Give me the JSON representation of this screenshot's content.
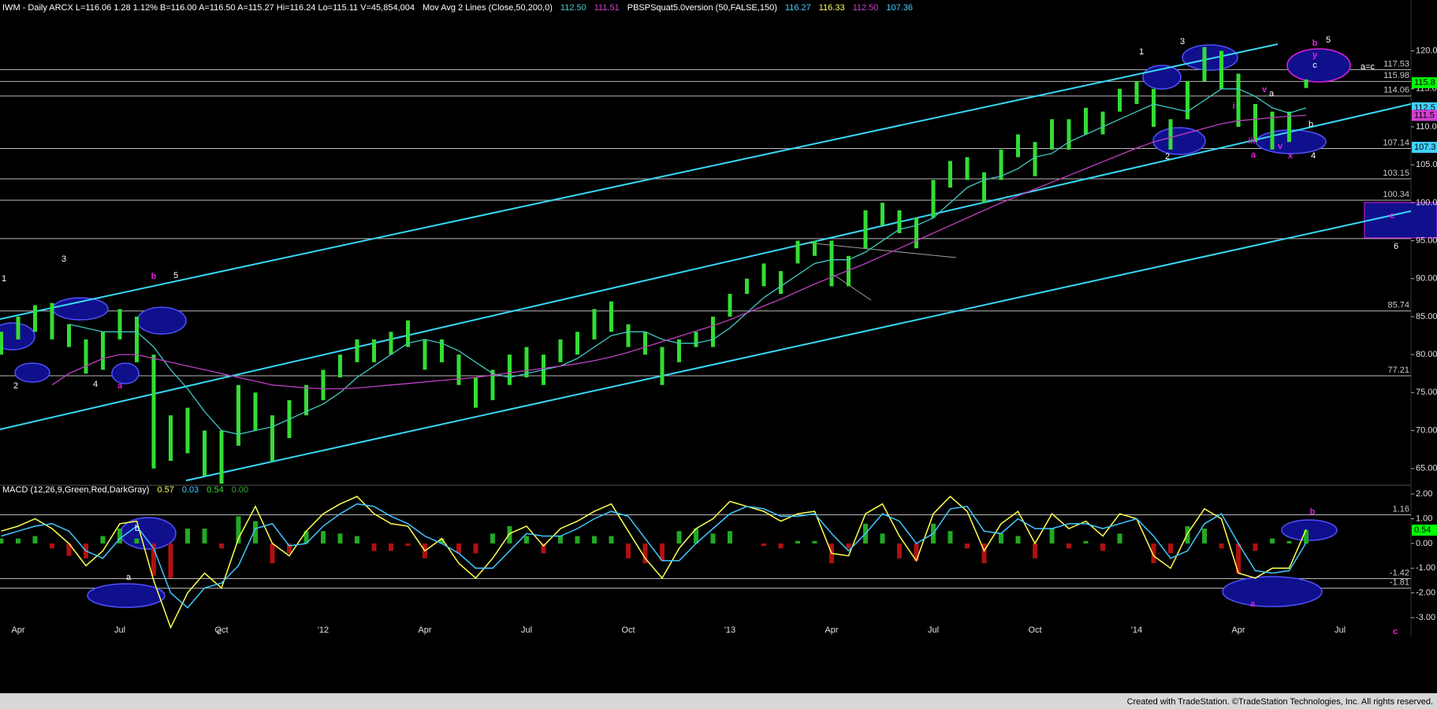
{
  "chart_data": [
    {
      "type": "ohlc",
      "header": [
        {
          "text": "IWM - Daily  ARCX  L=116.06  1.28  1.12%  B=116.00  A=116.50  A=115.27  Hi=116.24  Lo=115.11  V=45,854,004",
          "color": "#ffffff"
        },
        {
          "text": "Mov Avg 2 Lines (Close,50,200,0)",
          "color": "#ffffff"
        },
        {
          "text": "112.50",
          "color": "#40d0d0"
        },
        {
          "text": "111.51",
          "color": "#d040d0"
        },
        {
          "text": "PBSPSquat5.0version (50,FALSE,150)",
          "color": "#ffffff"
        },
        {
          "text": "116.27",
          "color": "#40d0ff"
        },
        {
          "text": "116.33",
          "color": "#ffff60"
        },
        {
          "text": "112.50",
          "color": "#d040d0"
        },
        {
          "text": "107.36",
          "color": "#40d0ff"
        }
      ],
      "categories": [
        null,
        "Apr",
        null,
        null,
        null,
        null,
        null,
        "Jul",
        null,
        null,
        null,
        null,
        null,
        "Oct",
        null,
        null,
        null,
        null,
        null,
        "'12",
        null,
        null,
        null,
        null,
        null,
        "Apr",
        null,
        null,
        null,
        null,
        null,
        "Jul",
        null,
        null,
        null,
        null,
        null,
        "Oct",
        null,
        null,
        null,
        null,
        null,
        "'13",
        null,
        null,
        null,
        null,
        null,
        "Apr",
        null,
        null,
        null,
        null,
        null,
        "Jul",
        null,
        null,
        null,
        null,
        null,
        "Oct",
        null,
        null,
        null,
        null,
        null,
        "'14",
        null,
        null,
        null,
        null,
        null,
        "Apr",
        null,
        null,
        null,
        null,
        null,
        "Jul",
        null
      ],
      "high": [
        83,
        85,
        86.5,
        86.8,
        84,
        82,
        83,
        86,
        85,
        80,
        72,
        73,
        70,
        70,
        76,
        75,
        72,
        74,
        76,
        78,
        80,
        82,
        82,
        83,
        84.5,
        82,
        82,
        80,
        77,
        78,
        80,
        81,
        80,
        82,
        83,
        86,
        87,
        84,
        83,
        81,
        82,
        83,
        85,
        88,
        90,
        92,
        91,
        95,
        95,
        95,
        93,
        99,
        100,
        99,
        98,
        103,
        105.5,
        106,
        104,
        107,
        109,
        108,
        111,
        111,
        112.5,
        112,
        115,
        116,
        115,
        111,
        116,
        120.5,
        120,
        117,
        113,
        112,
        112,
        116.24,
        null,
        null,
        null
      ],
      "low": [
        80,
        82,
        83,
        82,
        81,
        77.5,
        78,
        82,
        79,
        65,
        66,
        67,
        64,
        63,
        68,
        70,
        66,
        69,
        72,
        74,
        77,
        79,
        79,
        80,
        81,
        78,
        79,
        76,
        73,
        74,
        76,
        77,
        76,
        79,
        80,
        82,
        83,
        81,
        80,
        76,
        79,
        81,
        81,
        85,
        88,
        89,
        88,
        92,
        93,
        89,
        89,
        94,
        97,
        96,
        94,
        98,
        102,
        103,
        100,
        103,
        106,
        103.5,
        107,
        107,
        109,
        109,
        112,
        113,
        110,
        107,
        111,
        116,
        115,
        110,
        108,
        107,
        108,
        115.11,
        null,
        null,
        null
      ],
      "bar_color": "#33dd33",
      "lines": [
        {
          "color": "#40c8c0",
          "values": [
            null,
            null,
            null,
            null,
            84,
            83.5,
            83,
            83,
            83,
            81,
            78,
            75.5,
            72.5,
            70,
            69.5,
            70,
            70.5,
            71.5,
            72.5,
            73.5,
            75,
            77,
            78.5,
            80,
            81.5,
            82,
            81.5,
            80.5,
            79,
            77.5,
            77,
            77.5,
            78,
            78.5,
            79.5,
            81,
            82.5,
            83,
            83,
            82,
            81.5,
            81.5,
            82,
            83.5,
            85.5,
            87.5,
            89,
            90.5,
            92,
            92.5,
            92.5,
            93.5,
            95,
            96.5,
            97,
            98,
            100,
            102,
            103,
            103.5,
            104.5,
            106,
            106.5,
            108,
            109,
            110,
            111,
            112,
            113,
            112.5,
            112,
            113.5,
            115,
            115,
            114,
            112.5,
            111.8,
            112.5,
            null,
            null,
            null
          ]
        },
        {
          "color": "#c040c0",
          "values": [
            null,
            null,
            null,
            76,
            77.5,
            78.5,
            79.5,
            80,
            80,
            79.5,
            79,
            78.5,
            78,
            77.5,
            77,
            76.5,
            76,
            75.8,
            75.6,
            75.5,
            75.5,
            75.6,
            75.8,
            76,
            76.2,
            76.4,
            76.6,
            76.8,
            77,
            77.3,
            77.6,
            77.9,
            78.2,
            78.5,
            78.8,
            79.2,
            79.7,
            80.3,
            81,
            81.7,
            82.4,
            83.1,
            83.8,
            84.6,
            85.5,
            86.4,
            87.3,
            88.3,
            89.3,
            90.2,
            91.1,
            92,
            93,
            94,
            95,
            96,
            97,
            98,
            99,
            100,
            100.9,
            101.8,
            102.7,
            103.6,
            104.5,
            105.4,
            106.3,
            107.2,
            108,
            108.6,
            109.2,
            109.8,
            110.4,
            110.8,
            111,
            111.2,
            111.4,
            111.51,
            null,
            null,
            null
          ]
        }
      ],
      "ylim": [
        63,
        126.7
      ],
      "yticks": [
        {
          "value": 120,
          "label": "120.00"
        },
        {
          "value": 115,
          "label": "115.00"
        },
        {
          "value": 110,
          "label": "110.00"
        },
        {
          "value": 105,
          "label": "105.00"
        },
        {
          "value": 100,
          "label": "100.00"
        },
        {
          "value": 95,
          "label": "95.00"
        },
        {
          "value": 90,
          "label": "90.00"
        },
        {
          "value": 85,
          "label": "85.00"
        },
        {
          "value": 80,
          "label": "80.00"
        },
        {
          "value": 75,
          "label": "75.00"
        },
        {
          "value": 70,
          "label": "70.00"
        },
        {
          "value": 65,
          "label": "65.00"
        }
      ],
      "levels": [
        117.53,
        115.98,
        114.06,
        107.14,
        103.15,
        100.34,
        95.28,
        85.74,
        77.21
      ],
      "tags": [
        {
          "value": 115.8,
          "label": "115.8",
          "color": "#00ff00"
        },
        {
          "value": 112.5,
          "label": "112.5",
          "color": "#40d0ff"
        },
        {
          "value": 111.5,
          "label": "111.5",
          "color": "#d040d0"
        },
        {
          "value": 107.3,
          "label": "107.3",
          "color": "#40d0ff"
        }
      ],
      "annotations": [
        {
          "text": "1",
          "color": "#ffffff"
        },
        {
          "text": "3",
          "color": "#ffffff"
        },
        {
          "text": "2",
          "color": "#ffffff"
        },
        {
          "text": "4",
          "color": "#ffffff"
        },
        {
          "text": "5",
          "color": "#ffffff"
        },
        {
          "text": "b",
          "color": "#e020e0"
        },
        {
          "text": "a",
          "color": "#e020e0"
        },
        {
          "text": "1",
          "color": "#ffffff"
        },
        {
          "text": "3",
          "color": "#ffffff"
        },
        {
          "text": "2",
          "color": "#ffffff"
        },
        {
          "text": "5",
          "color": "#ffffff"
        },
        {
          "text": "b",
          "color": "#e020e0"
        },
        {
          "text": "y",
          "color": "#e020e0"
        },
        {
          "text": "c",
          "color": "#ffffff"
        },
        {
          "text": "a=c",
          "color": "#ffffff"
        },
        {
          "text": "i",
          "color": "#e020e0"
        },
        {
          "text": "iii",
          "color": "#e020e0"
        },
        {
          "text": "a",
          "color": "#e020e0"
        },
        {
          "text": "v",
          "color": "#e020e0"
        },
        {
          "text": "x",
          "color": "#e020e0"
        },
        {
          "text": "4",
          "color": "#ffffff"
        },
        {
          "text": "b",
          "color": "#ffffff"
        },
        {
          "text": "a",
          "color": "#ffffff"
        },
        {
          "text": "v",
          "color": "#e020e0"
        },
        {
          "text": "c",
          "color": "#e020e0"
        },
        {
          "text": "6",
          "color": "#ffffff"
        }
      ],
      "footer": "Created with TradeStation. ©TradeStation Technologies, Inc. All rights reserved."
    },
    {
      "type": "macd",
      "header": [
        {
          "text": "MACD (12,26,9,Green,Red,DarkGray)",
          "color": "#ffffff"
        },
        {
          "text": "0.57",
          "color": "#ffff60"
        },
        {
          "text": "0.03",
          "color": "#40d0ff"
        },
        {
          "text": "0.54",
          "color": "#33dd33"
        },
        {
          "text": "0.00",
          "color": "#33aa33"
        }
      ],
      "lines": [
        {
          "color": "#ffff50",
          "values": [
            0.5,
            0.7,
            1.0,
            0.6,
            0.0,
            -0.9,
            -0.3,
            0.8,
            0.9,
            -1.5,
            -3.4,
            -2.0,
            -1.2,
            -1.8,
            0.2,
            1.5,
            0.0,
            -0.5,
            0.5,
            1.2,
            1.6,
            1.9,
            1.2,
            0.8,
            0.7,
            -0.3,
            0.2,
            -0.8,
            -1.4,
            -0.6,
            0.4,
            0.7,
            -0.1,
            0.6,
            0.9,
            1.3,
            1.6,
            0.5,
            -0.6,
            -1.4,
            -0.2,
            0.6,
            1.0,
            1.7,
            1.5,
            1.3,
            0.9,
            1.2,
            1.3,
            -0.4,
            -0.5,
            1.2,
            1.6,
            0.3,
            -0.7,
            1.2,
            1.9,
            1.3,
            -0.3,
            0.8,
            1.3,
            0.0,
            1.2,
            0.6,
            0.9,
            0.3,
            1.2,
            1.0,
            -0.5,
            -1.0,
            0.4,
            1.4,
            1.0,
            -1.2,
            -1.4,
            -1.0,
            -1.0,
            0.57,
            null,
            null,
            null
          ]
        },
        {
          "color": "#40c8ff",
          "values": [
            0.3,
            0.5,
            0.7,
            0.8,
            0.5,
            -0.3,
            -0.6,
            0.2,
            0.7,
            -0.2,
            -2.0,
            -2.6,
            -1.8,
            -1.6,
            -0.9,
            0.6,
            0.8,
            -0.1,
            0.0,
            0.7,
            1.2,
            1.6,
            1.5,
            1.1,
            0.8,
            0.3,
            0.0,
            -0.4,
            -1.0,
            -1.0,
            -0.3,
            0.4,
            0.3,
            0.3,
            0.6,
            1.0,
            1.3,
            1.1,
            0.2,
            -0.7,
            -0.7,
            0.0,
            0.6,
            1.2,
            1.5,
            1.4,
            1.1,
            1.1,
            1.2,
            0.4,
            -0.3,
            0.4,
            1.2,
            0.9,
            0.0,
            0.4,
            1.4,
            1.5,
            0.5,
            0.4,
            1.0,
            0.6,
            0.6,
            0.8,
            0.8,
            0.6,
            0.8,
            1.0,
            0.3,
            -0.6,
            -0.3,
            0.8,
            1.2,
            0.0,
            -1.1,
            -1.2,
            -1.1,
            0.03,
            null,
            null,
            null
          ]
        }
      ],
      "hist": {
        "up_color": "#22aa22",
        "down_color": "#b01010",
        "values": [
          0.2,
          0.2,
          0.3,
          -0.2,
          -0.5,
          -0.6,
          0.3,
          0.6,
          0.2,
          -1.3,
          -1.4,
          0.6,
          0.6,
          -0.2,
          1.1,
          0.9,
          -0.8,
          -0.4,
          0.5,
          0.5,
          0.4,
          0.3,
          -0.3,
          -0.3,
          -0.1,
          -0.6,
          0.2,
          -0.4,
          -0.4,
          0.4,
          0.7,
          0.3,
          -0.4,
          0.3,
          0.3,
          0.3,
          0.3,
          -0.6,
          -0.8,
          -0.7,
          0.5,
          0.6,
          0.4,
          0.5,
          0.0,
          -0.1,
          -0.2,
          0.1,
          0.1,
          -0.8,
          -0.2,
          0.8,
          0.4,
          -0.6,
          -0.7,
          0.8,
          0.5,
          -0.2,
          -0.8,
          0.4,
          0.3,
          -0.6,
          0.6,
          -0.2,
          0.1,
          -0.3,
          0.4,
          0.0,
          -0.8,
          -0.4,
          0.7,
          0.6,
          -0.2,
          -1.2,
          -0.3,
          0.2,
          0.1,
          0.54,
          null,
          null,
          null
        ]
      },
      "ylim": [
        -3.19,
        2.29
      ],
      "yticks": [
        {
          "value": 2,
          "label": "2.00"
        },
        {
          "value": 1,
          "label": "1.00"
        },
        {
          "value": 0,
          "label": "0.00"
        },
        {
          "value": -1,
          "label": "-1.00"
        },
        {
          "value": -2,
          "label": "-2.00"
        },
        {
          "value": -3,
          "label": "-3.00"
        }
      ],
      "levels": [
        1.16,
        -1.42,
        -1.81
      ],
      "tags": [
        {
          "value": 0.54,
          "label": "0.54",
          "color": "#00ff00"
        }
      ],
      "annotations": [
        {
          "text": "b",
          "color": "#ffffff"
        },
        {
          "text": "a",
          "color": "#ffffff"
        },
        {
          "text": "c",
          "color": "#ffffff"
        },
        {
          "text": "b",
          "color": "#e020e0"
        },
        {
          "text": "a",
          "color": "#e020e0"
        },
        {
          "text": "c",
          "color": "#e020e0"
        }
      ]
    }
  ]
}
